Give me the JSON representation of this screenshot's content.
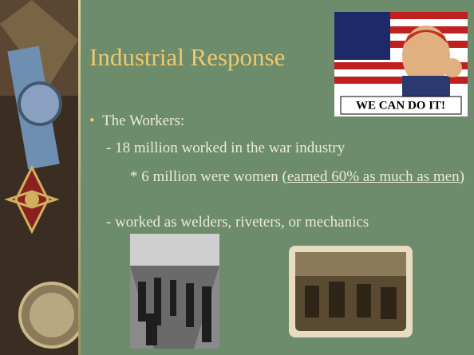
{
  "slide": {
    "title": "Industrial Response",
    "poster_text": "WE CAN DO IT!",
    "bullet": "The Workers:",
    "line_1": "- 18 million worked in the war industry",
    "line_2": {
      "before": "* 6 million were women (",
      "link": "earned 60% as much as men",
      "after": ")"
    },
    "line_3": "- worked as welders, riveters, or mechanics"
  }
}
